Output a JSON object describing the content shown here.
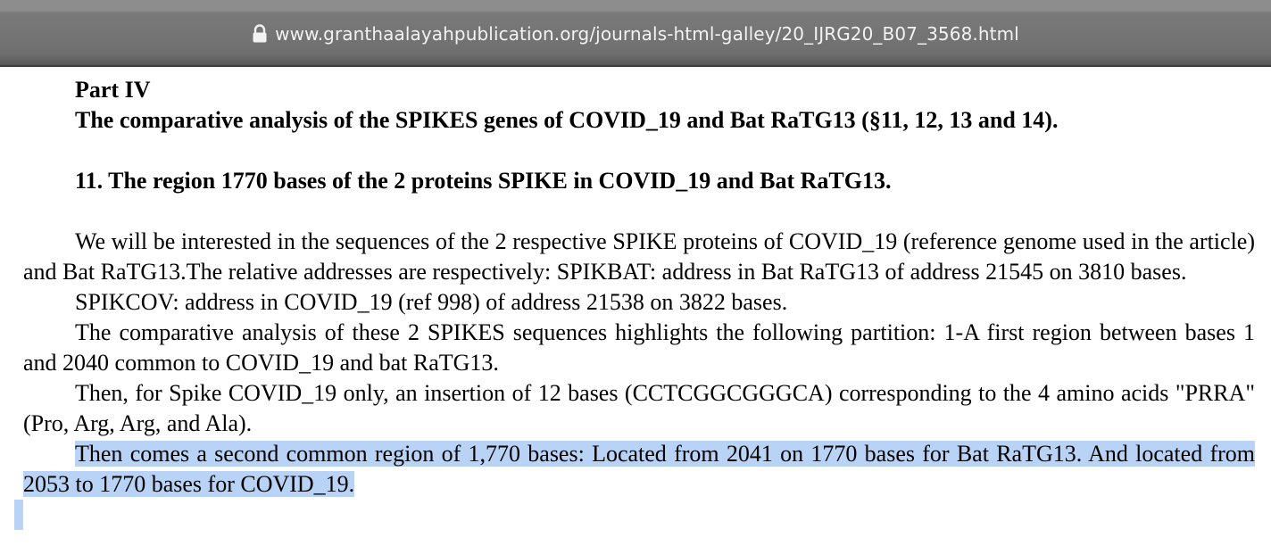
{
  "browser": {
    "url": "www.granthaalayahpublication.org/journals-html-galley/20_IJRG20_B07_3568.html",
    "lock_icon": "lock-icon"
  },
  "article": {
    "part_title": "Part IV",
    "part_subtitle": "The comparative analysis of the SPIKES genes of COVID_19 and Bat RaTG13 (§11, 12, 13 and 14).",
    "section_heading": "11. The region 1770 bases of the 2 proteins SPIKE in COVID_19 and Bat RaTG13.",
    "paragraphs": [
      "We will be interested in the sequences of the 2 respective SPIKE proteins of COVID_19 (reference genome used in the article) and Bat RaTG13.The relative addresses are respectively: SPIKBAT: address in Bat RaTG13 of address 21545 on 3810 bases.",
      "SPIKCOV: address in COVID_19 (ref 998) of address 21538 on 3822 bases.",
      "The comparative analysis of these 2 SPIKES sequences highlights the following partition: 1-A first region between bases 1 and 2040 common to COVID_19 and bat RaTG13.",
      "Then, for Spike COVID_19 only, an insertion of 12 bases (CCTCGGCGGGCA) corresponding to the 4 amino acids \"PRRA\" (Pro, Arg, Arg, and Ala).",
      "Then comes a second common region of 1,770 bases: Located from 2041 on 1770 bases for Bat RaTG13. And located from 2053 to 1770 bases for COVID_19."
    ],
    "selection_color": "#b8d3f5"
  }
}
